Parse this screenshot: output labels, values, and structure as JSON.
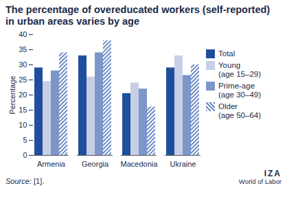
{
  "chart_data": {
    "type": "bar",
    "title": "The percentage of overeducated workers (self-reported) in urban areas varies by age",
    "categories": [
      "Armenia",
      "Georgia",
      "Macedonia",
      "Ukraine"
    ],
    "series": [
      {
        "name": "Total",
        "color": "#1f4e9c",
        "values": [
          29,
          33,
          20.5,
          29
        ]
      },
      {
        "name": "Young (age 15–29)",
        "color": "#c6cfe6",
        "values": [
          24.5,
          26,
          24,
          33
        ]
      },
      {
        "name": "Prime-age (age 30–49)",
        "color": "#7d96c8",
        "values": [
          28,
          34,
          22,
          26.5
        ]
      },
      {
        "name": "Older (age 50–64)",
        "color": "#6f8cc4",
        "values": [
          34,
          38,
          16,
          30
        ]
      }
    ],
    "ylabel": "Percentage",
    "ylim": [
      0,
      40
    ],
    "yticks": [
      0,
      5,
      10,
      15,
      20,
      25,
      30,
      35,
      40
    ],
    "grid": false,
    "legend": "right",
    "annotations": [
      "Source: [1].",
      "IZA",
      "World of Labor"
    ]
  }
}
